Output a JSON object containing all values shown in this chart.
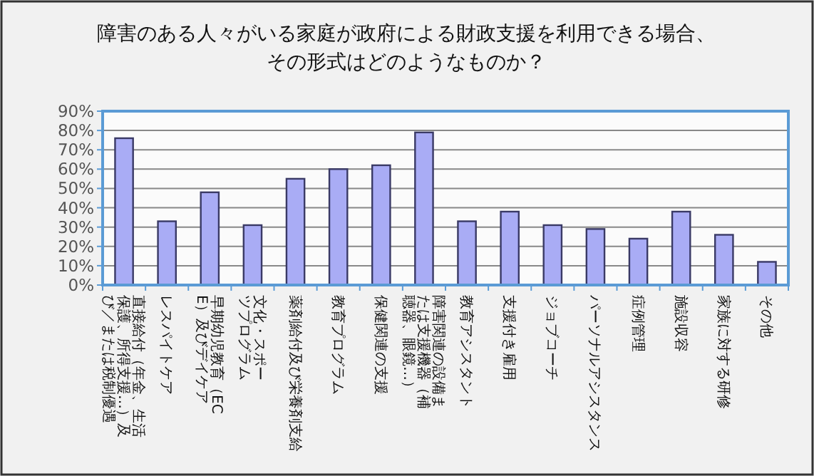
{
  "chart_data": {
    "type": "bar",
    "title": "障害のある人々がいる家庭が政府による財政支援を利用できる場合、その形式はどのようなものか？",
    "categories": [
      "直接給付（年金、生活保護、所得支援…）及び／または税制優遇",
      "レスパイトケア",
      "早期幼児教育（ECE）及びデイケア",
      "文化・スポーツプログラム",
      "薬剤給付及び栄養剤支給",
      "教育プログラム",
      "保健関連の支援",
      "障害関連の設備または支援機器（補聴器、眼鏡…）",
      "教育アシスタント",
      "支援付き雇用",
      "ジョブコーチ",
      "パーソナルアシスタンス",
      "症例管理",
      "施設収容",
      "家族に対する研修",
      "その他"
    ],
    "values": [
      76,
      33,
      48,
      31,
      55,
      60,
      62,
      79,
      33,
      38,
      31,
      29,
      24,
      38,
      26,
      12
    ],
    "color": "#a9acf5",
    "ylim": [
      0,
      90
    ],
    "yticks": [
      {
        "value": 0,
        "label": "0%"
      },
      {
        "value": 10,
        "label": "10%"
      },
      {
        "value": 20,
        "label": "20%"
      },
      {
        "value": 30,
        "label": "30%"
      },
      {
        "value": 40,
        "label": "40%"
      },
      {
        "value": 50,
        "label": "50%"
      },
      {
        "value": 60,
        "label": "60%"
      },
      {
        "value": 70,
        "label": "70%"
      },
      {
        "value": 80,
        "label": "80%"
      },
      {
        "value": 90,
        "label": "90%"
      }
    ],
    "grid": "y"
  }
}
